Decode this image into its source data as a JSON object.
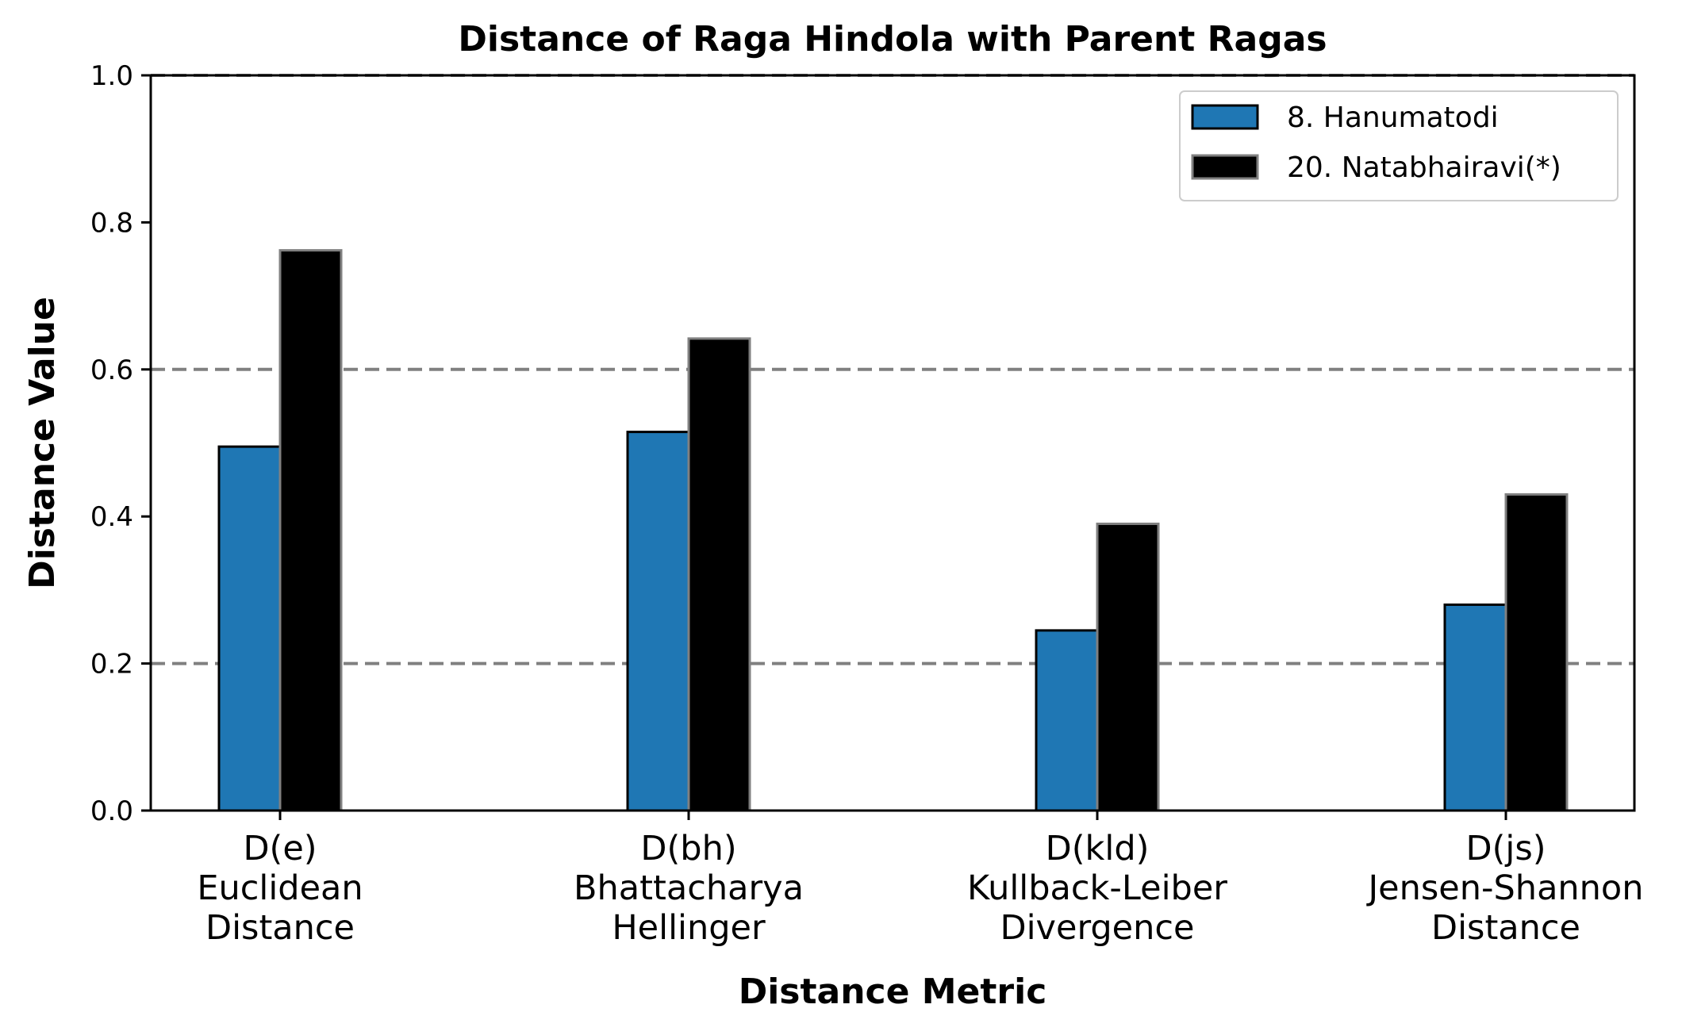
{
  "chart_data": {
    "type": "bar",
    "title": "Distance of Raga Hindola with Parent Ragas",
    "xlabel": "Distance Metric",
    "ylabel": "Distance Value",
    "ylim": [
      0,
      1.0
    ],
    "yticks": [
      "0.0",
      "0.2",
      "0.4",
      "0.6",
      "0.8",
      "1.0"
    ],
    "reference_lines": [
      0.2,
      0.6,
      1.0
    ],
    "categories": [
      [
        "D(e)",
        "Euclidean",
        "Distance"
      ],
      [
        "D(bh)",
        "Bhattacharya",
        "Hellinger"
      ],
      [
        "D(kld)",
        "Kullback-Leiber",
        "Divergence"
      ],
      [
        "D(js)",
        "Jensen-Shannon",
        "Distance"
      ]
    ],
    "series": [
      {
        "name": "8. Hanumatodi",
        "color": "#1f77b4",
        "edge": "#000000",
        "values": [
          0.495,
          0.515,
          0.245,
          0.28
        ]
      },
      {
        "name": "20. Natabhairavi(*)",
        "color": "#000000",
        "edge": "#808080",
        "values": [
          0.762,
          0.642,
          0.39,
          0.43
        ]
      }
    ],
    "legend": {
      "placement": "top-right"
    },
    "grid": false
  }
}
